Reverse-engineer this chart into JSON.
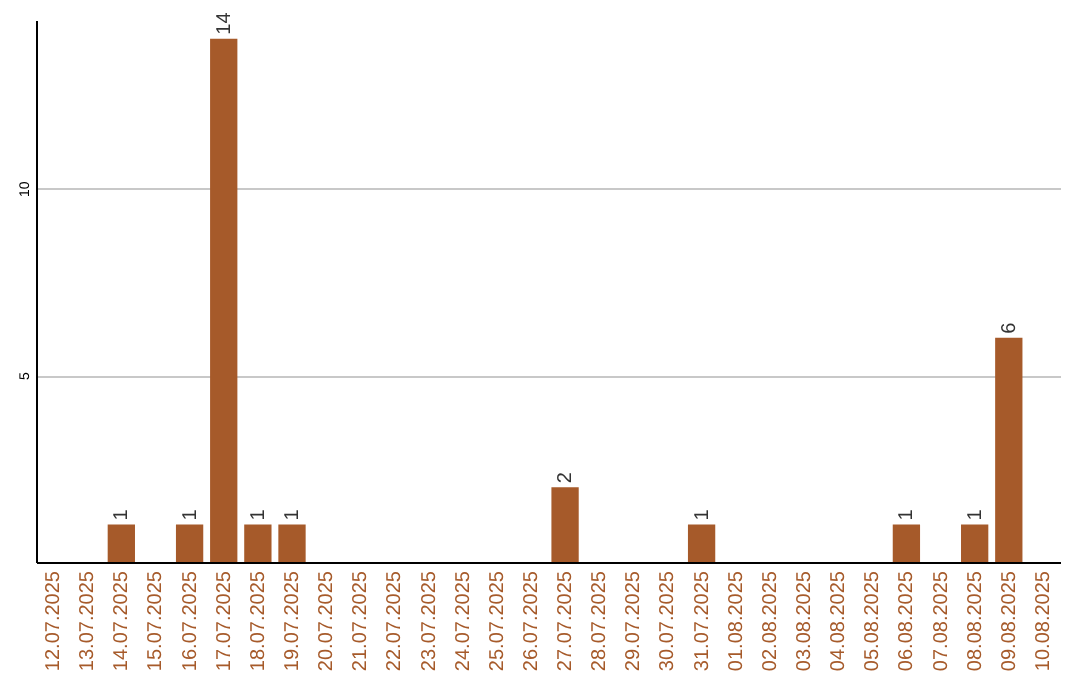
{
  "chart_data": {
    "type": "bar",
    "categories": [
      "12.07.2025",
      "13.07.2025",
      "14.07.2025",
      "15.07.2025",
      "16.07.2025",
      "17.07.2025",
      "18.07.2025",
      "19.07.2025",
      "20.07.2025",
      "21.07.2025",
      "22.07.2025",
      "23.07.2025",
      "24.07.2025",
      "25.07.2025",
      "26.07.2025",
      "27.07.2025",
      "28.07.2025",
      "29.07.2025",
      "30.07.2025",
      "31.07.2025",
      "01.08.2025",
      "02.08.2025",
      "03.08.2025",
      "04.08.2025",
      "05.08.2025",
      "06.08.2025",
      "07.08.2025",
      "08.08.2025",
      "09.08.2025",
      "10.08.2025"
    ],
    "values": [
      0,
      0,
      1,
      0,
      1,
      14,
      1,
      1,
      0,
      0,
      0,
      0,
      0,
      0,
      0,
      2,
      0,
      0,
      0,
      1,
      0,
      0,
      0,
      0,
      0,
      1,
      0,
      1,
      6,
      0
    ],
    "value_labels": [
      null,
      null,
      "1",
      null,
      "1",
      "14",
      "1",
      "1",
      null,
      null,
      null,
      null,
      null,
      null,
      null,
      "2",
      null,
      null,
      null,
      "1",
      null,
      null,
      null,
      null,
      null,
      "1",
      null,
      "1",
      "6",
      null
    ],
    "color": "#a65a2a",
    "ylim": [
      0,
      14.5
    ],
    "yticks": [
      5,
      10
    ],
    "grid": "y"
  }
}
